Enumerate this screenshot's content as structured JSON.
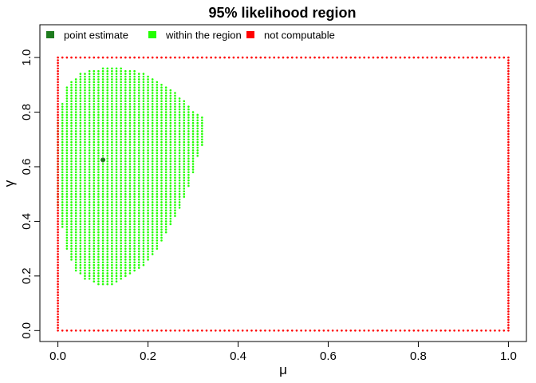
{
  "chart_data": {
    "type": "scatter",
    "title": "95% likelihood region",
    "xlabel": "μ",
    "ylabel": "γ",
    "xlim": [
      -0.04,
      1.04
    ],
    "ylim": [
      -0.04,
      1.12
    ],
    "x_ticks": [
      0.0,
      0.2,
      0.4,
      0.6,
      0.8,
      1.0
    ],
    "x_tick_labels": [
      "0.0",
      "0.2",
      "0.4",
      "0.6",
      "0.8",
      "1.0"
    ],
    "y_ticks": [
      0.0,
      0.2,
      0.4,
      0.6,
      0.8,
      1.0
    ],
    "y_tick_labels": [
      "0.0",
      "0.2",
      "0.4",
      "0.6",
      "0.8",
      "1.0"
    ],
    "grid": false,
    "legend_position": "top-left, horizontal",
    "legend": [
      {
        "label": "point estimate",
        "color": "#1e7b1e"
      },
      {
        "label": "within the region",
        "color": "#22ff00"
      },
      {
        "label": "not computable",
        "color": "#ff0000"
      }
    ],
    "series": [
      {
        "name": "point estimate",
        "color": "#1e7b1e",
        "points": [
          [
            0.1,
            0.625
          ]
        ]
      },
      {
        "name": "within the region",
        "color": "#22ff00",
        "grid_step": 0.01,
        "region_boundary": [
          [
            0.0,
            0.45
          ],
          [
            0.0,
            0.77
          ],
          [
            0.01,
            0.83
          ],
          [
            0.02,
            0.89
          ],
          [
            0.04,
            0.93
          ],
          [
            0.06,
            0.95
          ],
          [
            0.09,
            0.96
          ],
          [
            0.12,
            0.965
          ],
          [
            0.15,
            0.96
          ],
          [
            0.18,
            0.95
          ],
          [
            0.21,
            0.93
          ],
          [
            0.24,
            0.9
          ],
          [
            0.27,
            0.86
          ],
          [
            0.3,
            0.81
          ],
          [
            0.33,
            0.77
          ],
          [
            0.33,
            0.69
          ],
          [
            0.315,
            0.66
          ],
          [
            0.305,
            0.6
          ],
          [
            0.29,
            0.52
          ],
          [
            0.27,
            0.44
          ],
          [
            0.24,
            0.35
          ],
          [
            0.21,
            0.27
          ],
          [
            0.18,
            0.22
          ],
          [
            0.15,
            0.19
          ],
          [
            0.12,
            0.17
          ],
          [
            0.09,
            0.17
          ],
          [
            0.06,
            0.19
          ],
          [
            0.04,
            0.22
          ],
          [
            0.03,
            0.26
          ],
          [
            0.02,
            0.3
          ],
          [
            0.01,
            0.38
          ]
        ]
      },
      {
        "name": "not computable",
        "color": "#ff0000",
        "boundary_rectangle": {
          "x": [
            0.0,
            1.0
          ],
          "y": [
            0.0,
            1.0
          ]
        },
        "grid_step": 0.01
      }
    ]
  }
}
